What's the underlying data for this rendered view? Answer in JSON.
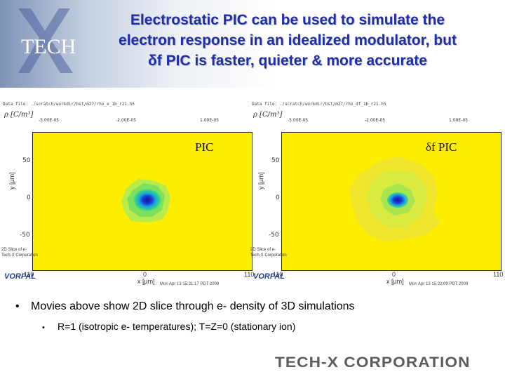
{
  "header": {
    "title_lines": [
      "Electrostatic PIC can be used to simulate the",
      "electron response in an idealized modulator, but",
      "δf PIC is faster, quieter & more accurate"
    ]
  },
  "panels": [
    {
      "label": "PIC",
      "meta": "Data file: ./scratch/workdir/bst/m27/rho_e_1b_r21.h5",
      "rho_label": "ρ [C/m³]",
      "colorbar_ticks": [
        "-5.00E-05",
        "-2.00E-05",
        "1.00E-05"
      ],
      "yticks": [
        "50",
        "0",
        "-50"
      ],
      "yaxis_label": "y [μm]",
      "xticks": [
        "110",
        "0",
        "110"
      ],
      "xaxis_label": "x [μm]",
      "footer_left": [
        "2D Slice of e-",
        "Tech-X Corporation"
      ],
      "vorpal": "VORPAL",
      "timestamp": "Mon Apr 13 15:21:17 PDT 2009"
    },
    {
      "label": "δf  PIC",
      "meta": "Data file: ./scratch/workdir/bst/m27/rho_df_1b_r21.h5",
      "rho_label": "ρ [C/m³]",
      "colorbar_ticks": [
        "-5.00E-05",
        "-2.00E-05",
        "1.00E-05"
      ],
      "yticks": [
        "50",
        "0",
        "-50"
      ],
      "yaxis_label": "y [μm]",
      "xticks": [
        "110",
        "0",
        "110"
      ],
      "xaxis_label": "x [μm]",
      "footer_left": [
        "2D Slice of e-",
        "Tech-X Corporation"
      ],
      "vorpal": "VORPAL",
      "timestamp": "Mon Apr 13 15:22:09 PDT 2009"
    }
  ],
  "bullets": [
    {
      "text": "Movies above show 2D slice through e- density of 3D simulations"
    },
    {
      "text": "R=1 (isotropic e- temperatures);  T=Z=0 (stationary ion)"
    }
  ],
  "bullet_glyphs": [
    "•",
    "•"
  ],
  "logo": {
    "text": "TECH",
    "mark": "X"
  },
  "footer": {
    "corp_name": "TECH-X CORPORATION"
  },
  "colors": {
    "title": "#1f2fa8",
    "plot_background": "#ffee00",
    "halo": "#6ee06a",
    "core": "#1e3cd0"
  }
}
